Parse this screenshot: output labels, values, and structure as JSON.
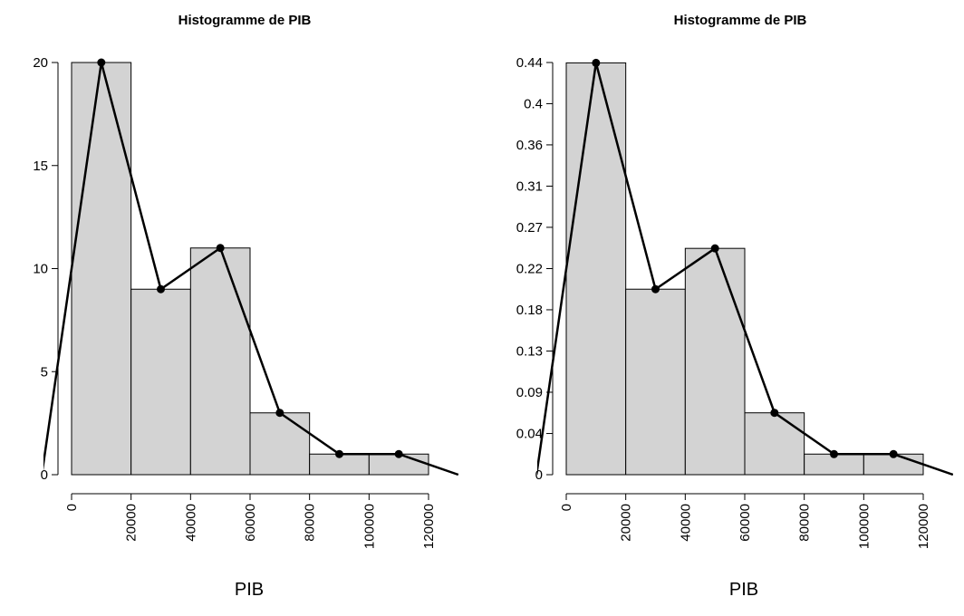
{
  "chart_data": [
    {
      "type": "bar",
      "title": "Histogramme de PIB",
      "xlabel": "PIB",
      "ylabel": "",
      "breaks": [
        0,
        20000,
        40000,
        60000,
        80000,
        100000,
        120000
      ],
      "values": [
        20,
        9,
        11,
        3,
        1,
        1
      ],
      "polygon": {
        "x": [
          -10000,
          10000,
          30000,
          50000,
          70000,
          90000,
          110000,
          130000
        ],
        "y": [
          0,
          20,
          9,
          11,
          3,
          1,
          1,
          0
        ]
      },
      "x_ticks": [
        "0",
        "20000",
        "40000",
        "60000",
        "80000",
        "100000",
        "120000"
      ],
      "y_ticks": [
        {
          "value": 0,
          "label": "0"
        },
        {
          "value": 5,
          "label": "5"
        },
        {
          "value": 10,
          "label": "10"
        },
        {
          "value": 15,
          "label": "15"
        },
        {
          "value": 20,
          "label": "20"
        }
      ],
      "ylim": [
        0,
        20
      ],
      "grid": false,
      "bar_fill": "#d3d3d3"
    },
    {
      "type": "bar",
      "title": "Histogramme de PIB",
      "xlabel": "PIB",
      "ylabel": "",
      "breaks": [
        0,
        20000,
        40000,
        60000,
        80000,
        100000,
        120000
      ],
      "values": [
        0.444,
        0.2,
        0.244,
        0.0667,
        0.0222,
        0.0222
      ],
      "polygon": {
        "x": [
          -10000,
          10000,
          30000,
          50000,
          70000,
          90000,
          110000,
          130000
        ],
        "y": [
          0,
          0.444,
          0.2,
          0.244,
          0.0667,
          0.0222,
          0.0222,
          0
        ]
      },
      "x_ticks": [
        "0",
        "20000",
        "40000",
        "60000",
        "80000",
        "100000",
        "120000"
      ],
      "y_ticks": [
        {
          "value": 0,
          "label": "0"
        },
        {
          "value": 0.0444,
          "label": "0.04"
        },
        {
          "value": 0.0889,
          "label": "0.09"
        },
        {
          "value": 0.1333,
          "label": "0.13"
        },
        {
          "value": 0.1778,
          "label": "0.18"
        },
        {
          "value": 0.2222,
          "label": "0.22"
        },
        {
          "value": 0.2667,
          "label": "0.27"
        },
        {
          "value": 0.3111,
          "label": "0.31"
        },
        {
          "value": 0.3556,
          "label": "0.36"
        },
        {
          "value": 0.4,
          "label": "0.4"
        },
        {
          "value": 0.4444,
          "label": "0.44"
        }
      ],
      "ylim": [
        0,
        0.4444
      ],
      "grid": false,
      "bar_fill": "#d3d3d3"
    }
  ]
}
